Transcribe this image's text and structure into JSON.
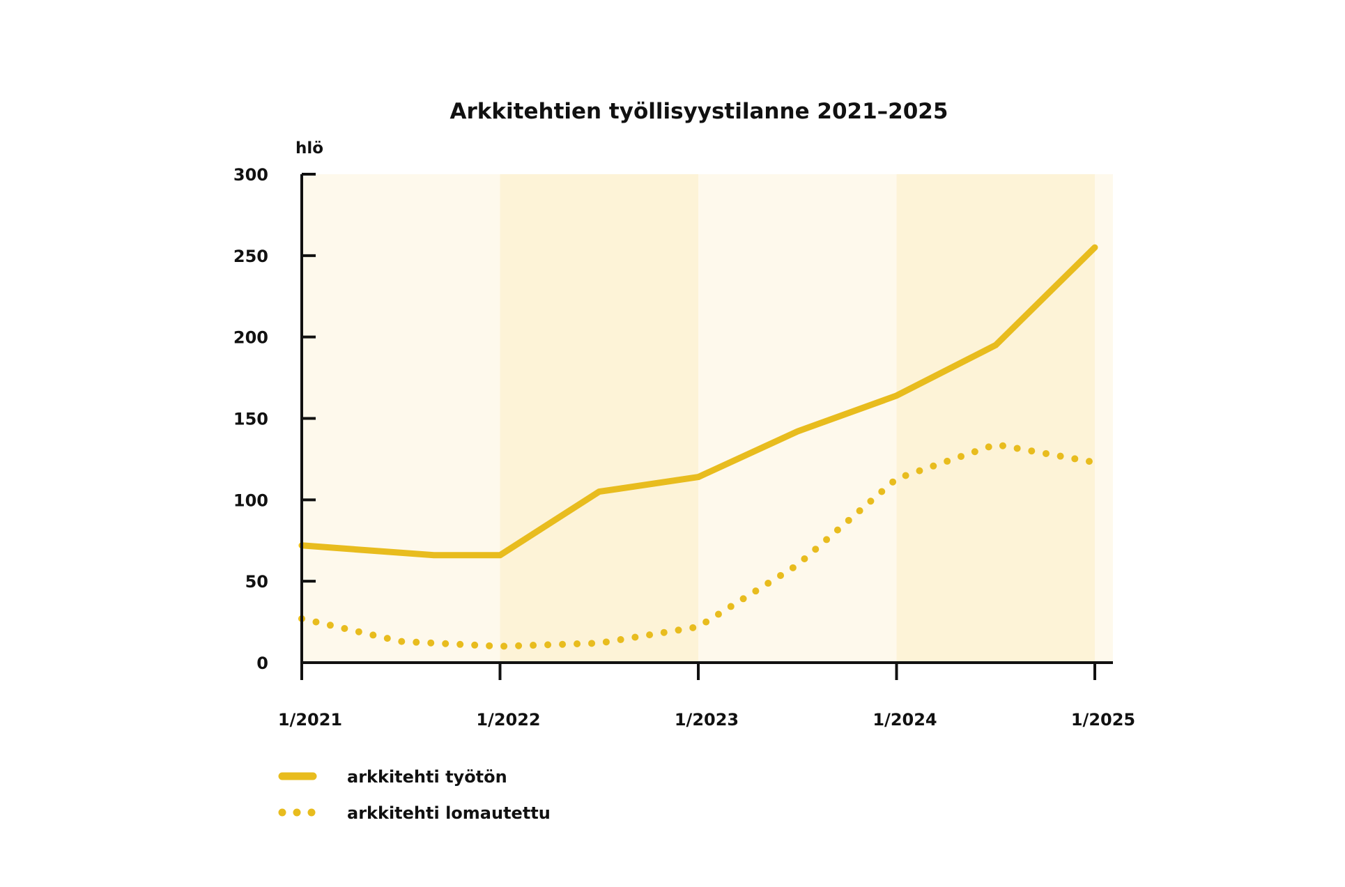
{
  "chart_data": {
    "type": "line",
    "title": "Arkkitehtien työllisyystilanne 2021–2025",
    "ylabel": "hlö",
    "ylim": [
      0,
      300
    ],
    "yticks": [
      "0",
      "50",
      "100",
      "150",
      "200",
      "250",
      "300"
    ],
    "xticks": [
      "1/2021",
      "1/2022",
      "1/2023",
      "1/2024",
      "1/2025"
    ],
    "grid": false,
    "legend_position": "bottom-left",
    "colors": {
      "line": "#E8BC1E",
      "band_light": "#FEF9EC",
      "band_dark": "#FDF3D7",
      "axis": "#111111"
    },
    "series": [
      {
        "name": "arkkitehti työtön",
        "style": "solid",
        "x": [
          "1/2021",
          "9/2021",
          "1/2022",
          "7/2022",
          "1/2023",
          "7/2023",
          "1/2024",
          "7/2024",
          "1/2025"
        ],
        "values": [
          72,
          66,
          66,
          105,
          114,
          142,
          164,
          195,
          255
        ]
      },
      {
        "name": "arkkitehti lomautettu",
        "style": "dotted",
        "x": [
          "1/2021",
          "7/2021",
          "1/2022",
          "7/2022",
          "1/2023",
          "7/2023",
          "1/2024",
          "7/2024",
          "1/2025"
        ],
        "values": [
          27,
          13,
          10,
          12,
          22,
          60,
          113,
          134,
          123
        ]
      }
    ]
  }
}
